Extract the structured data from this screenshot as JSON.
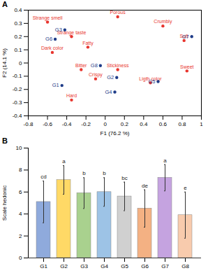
{
  "chart_data": [
    {
      "type": "scatter",
      "title": "A",
      "x_label": "F1 (76.2 %)",
      "y_label": "F2 (14.1 %)",
      "xlim": [
        -0.8,
        1
      ],
      "xticks": [
        -0.8,
        -0.6,
        -0.4,
        -0.2,
        0,
        0.2,
        0.4,
        0.6,
        0.8,
        1
      ],
      "ylim": [
        -0.4,
        0.4
      ],
      "yticks": [
        -0.4,
        -0.3,
        -0.2,
        -0.1,
        0,
        0.1,
        0.2,
        0.3,
        0.4
      ],
      "grid": false,
      "series": [
        {
          "color": "#e8352e",
          "marker": "circle",
          "labels": [
            "Strange smell",
            "Porous",
            "Strange taste",
            "Fatty",
            "Crumbly",
            "Dark color",
            "Soft",
            "Bitter",
            "Stickiness",
            "Sweet",
            "Crispy",
            "Ligth color",
            "Hard"
          ],
          "x": [
            -0.6,
            0.13,
            -0.35,
            -0.18,
            0.6,
            -0.55,
            0.82,
            -0.25,
            0.13,
            0.85,
            -0.1,
            0.47,
            -0.35
          ],
          "y": [
            0.31,
            0.35,
            0.2,
            0.12,
            0.28,
            0.08,
            0.17,
            -0.05,
            -0.05,
            -0.06,
            -0.12,
            -0.15,
            -0.28
          ]
        },
        {
          "color": "#1f3c88",
          "marker": "circle",
          "labels": [
            "G1",
            "G2",
            "G3",
            "G4",
            "G5",
            "G6",
            "G7",
            "G8"
          ],
          "x": [
            -0.45,
            0.12,
            -0.42,
            0.1,
            0.55,
            -0.52,
            0.9,
            -0.05
          ],
          "y": [
            -0.17,
            -0.11,
            0.25,
            -0.22,
            -0.14,
            0.18,
            0.2,
            -0.02
          ]
        }
      ]
    },
    {
      "type": "bar",
      "title": "B",
      "y_label": "Scale hedonic",
      "categories": [
        "G1",
        "G2",
        "G3",
        "G4",
        "G5",
        "G6",
        "G7",
        "G8"
      ],
      "values": [
        5.1,
        7.1,
        5.9,
        6.0,
        5.6,
        4.5,
        7.3,
        3.9
      ],
      "errors": [
        1.9,
        1.3,
        1.4,
        1.3,
        1.3,
        1.7,
        1.2,
        2.1
      ],
      "letters": [
        "cd",
        "a",
        "b",
        "b",
        "bc",
        "de",
        "a",
        "e"
      ],
      "colors": [
        "#8faadc",
        "#ffd966",
        "#a9d18e",
        "#9dc3e6",
        "#d0d0d0",
        "#f4b183",
        "#c5a3e0",
        "#f8cbad"
      ],
      "ylim": [
        0,
        10
      ],
      "yticks": [
        0,
        2,
        4,
        6,
        8,
        10
      ],
      "grid": false
    }
  ]
}
